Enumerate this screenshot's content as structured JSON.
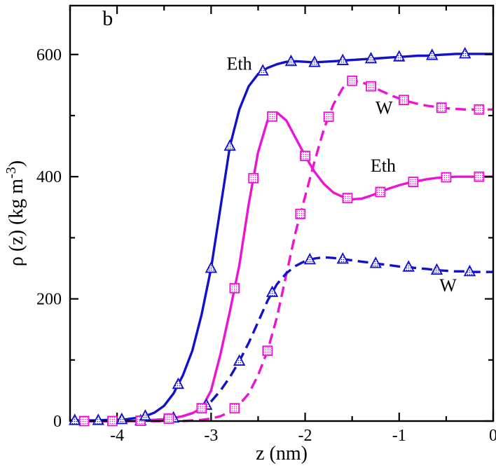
{
  "chart_data": {
    "type": "line",
    "title": "",
    "panel_label": "b",
    "xlabel": "z  (nm)",
    "ylabel": "ρ (z)  (kg m⁻³)",
    "ylabel_parts": {
      "pre": "ρ (z)  (kg m",
      "sup": "-3",
      "post": ")"
    },
    "xlim": [
      -4.5,
      0
    ],
    "ylim": [
      0,
      680
    ],
    "xticks": [
      -4,
      -3,
      -2,
      -1,
      0
    ],
    "yticks": [
      0,
      200,
      400,
      600
    ],
    "x_minor_step": 0.5,
    "y_minor_step": 100,
    "grid": false,
    "legend_position": "none",
    "colors": {
      "blue": "#1111cc",
      "magenta": "#ec13d2",
      "axis": "#000000"
    },
    "series": [
      {
        "id": "w-magenta-dashed",
        "label": "W",
        "color_key": "magenta",
        "line_style": "dashed",
        "marker": "square",
        "x_start": -4.5,
        "x_step": 0.1,
        "y": [
          0,
          0,
          0,
          0,
          0,
          0,
          0,
          0,
          0,
          0,
          0,
          0,
          0,
          1,
          2,
          4,
          8,
          15,
          27,
          45,
          75,
          115,
          170,
          240,
          310,
          368,
          425,
          478,
          518,
          545,
          557,
          555,
          548,
          541,
          534,
          528,
          523,
          519,
          516,
          514,
          512,
          511,
          510,
          510,
          510,
          510
        ],
        "marker_x": [
          -2.75,
          -2.4,
          -2.05,
          -1.75,
          -1.5,
          -1.3,
          -0.95,
          -0.55,
          -0.15
        ]
      },
      {
        "id": "w-blue-dashed",
        "label": "W",
        "color_key": "blue",
        "line_style": "dashed",
        "marker": "triangle",
        "x_start": -4.5,
        "x_step": 0.1,
        "y": [
          0,
          0,
          0,
          0,
          0,
          0,
          0,
          0,
          1,
          2,
          3,
          5,
          8,
          13,
          20,
          32,
          50,
          72,
          98,
          128,
          162,
          197,
          224,
          242,
          254,
          262,
          266,
          268,
          267,
          265,
          263,
          261,
          259,
          257,
          255,
          253,
          252,
          250,
          249,
          247,
          246,
          245,
          245,
          244,
          244,
          244
        ],
        "marker_x": [
          -3.75,
          -3.4,
          -3.05,
          -2.7,
          -2.35,
          -1.95,
          -1.6,
          -1.25,
          -0.9,
          -0.6,
          -0.25
        ]
      },
      {
        "id": "eth-magenta-solid",
        "label": "Eth",
        "color_key": "magenta",
        "line_style": "solid",
        "marker": "square",
        "x_start": -4.5,
        "x_step": 0.1,
        "y": [
          0,
          0,
          0,
          0,
          0,
          0,
          0,
          0,
          1,
          2,
          3,
          5,
          8,
          13,
          21,
          50,
          110,
          180,
          255,
          355,
          440,
          492,
          505,
          492,
          463,
          434,
          408,
          388,
          374,
          367,
          363,
          364,
          369,
          375,
          381,
          386,
          390,
          393,
          396,
          398,
          399,
          400,
          400,
          400,
          400,
          400
        ],
        "marker_x": [
          -4.35,
          -4.05,
          -3.75,
          -3.45,
          -3.1,
          -2.75,
          -2.55,
          -2.35,
          -2.0,
          -1.55,
          -1.2,
          -0.85,
          -0.5,
          -0.15
        ]
      },
      {
        "id": "eth-blue-solid",
        "label": "Eth",
        "color_key": "blue",
        "line_style": "solid",
        "marker": "triangle",
        "x_start": -4.5,
        "x_step": 0.1,
        "y": [
          1,
          1,
          1,
          1,
          2,
          2,
          3,
          5,
          8,
          14,
          25,
          45,
          75,
          115,
          175,
          250,
          350,
          450,
          510,
          548,
          568,
          578,
          584,
          588,
          589,
          588,
          587,
          588,
          589,
          590,
          591,
          592,
          593,
          594,
          595,
          596,
          597,
          598,
          598,
          599,
          600,
          601,
          601,
          601,
          601,
          601
        ],
        "marker_x": [
          -4.45,
          -4.2,
          -3.95,
          -3.7,
          -3.35,
          -3.0,
          -2.8,
          -2.45,
          -2.15,
          -1.9,
          -1.6,
          -1.3,
          -1.0,
          -0.65,
          -0.3
        ]
      }
    ],
    "annotations": [
      {
        "name": "panel-label",
        "text": "b",
        "x": -4.1,
        "y": 648,
        "size": 30
      },
      {
        "name": "eth-blue-label",
        "text": "Eth",
        "x": -2.7,
        "y": 575,
        "size": 26
      },
      {
        "name": "w-magenta-label",
        "text": "W",
        "x": -1.16,
        "y": 503,
        "size": 26
      },
      {
        "name": "eth-magenta-label",
        "text": "Eth",
        "x": -1.17,
        "y": 408,
        "size": 26
      },
      {
        "name": "w-blue-label",
        "text": "W",
        "x": -0.48,
        "y": 212,
        "size": 26
      }
    ]
  }
}
